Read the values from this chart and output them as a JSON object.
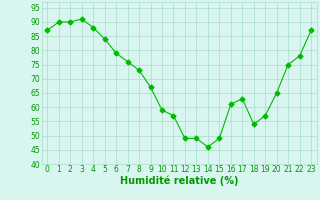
{
  "x": [
    0,
    1,
    2,
    3,
    4,
    5,
    6,
    7,
    8,
    9,
    10,
    11,
    12,
    13,
    14,
    15,
    16,
    17,
    18,
    19,
    20,
    21,
    22,
    23
  ],
  "y": [
    87,
    90,
    90,
    91,
    88,
    84,
    79,
    76,
    73,
    67,
    59,
    57,
    49,
    49,
    46,
    49,
    61,
    63,
    54,
    57,
    65,
    75,
    78,
    87
  ],
  "line_color": "#00bb00",
  "marker": "D",
  "marker_size": 2.5,
  "bg_color": "#d8f5f0",
  "grid_color": "#aaddcc",
  "xlabel": "Humidité relative (%)",
  "xlabel_color": "#009900",
  "xlabel_fontsize": 7,
  "tick_color": "#009900",
  "tick_fontsize": 5.5,
  "ylim": [
    40,
    97
  ],
  "yticks": [
    40,
    45,
    50,
    55,
    60,
    65,
    70,
    75,
    80,
    85,
    90,
    95
  ],
  "xlim": [
    -0.5,
    23.5
  ],
  "xticks": [
    0,
    1,
    2,
    3,
    4,
    5,
    6,
    7,
    8,
    9,
    10,
    11,
    12,
    13,
    14,
    15,
    16,
    17,
    18,
    19,
    20,
    21,
    22,
    23
  ]
}
